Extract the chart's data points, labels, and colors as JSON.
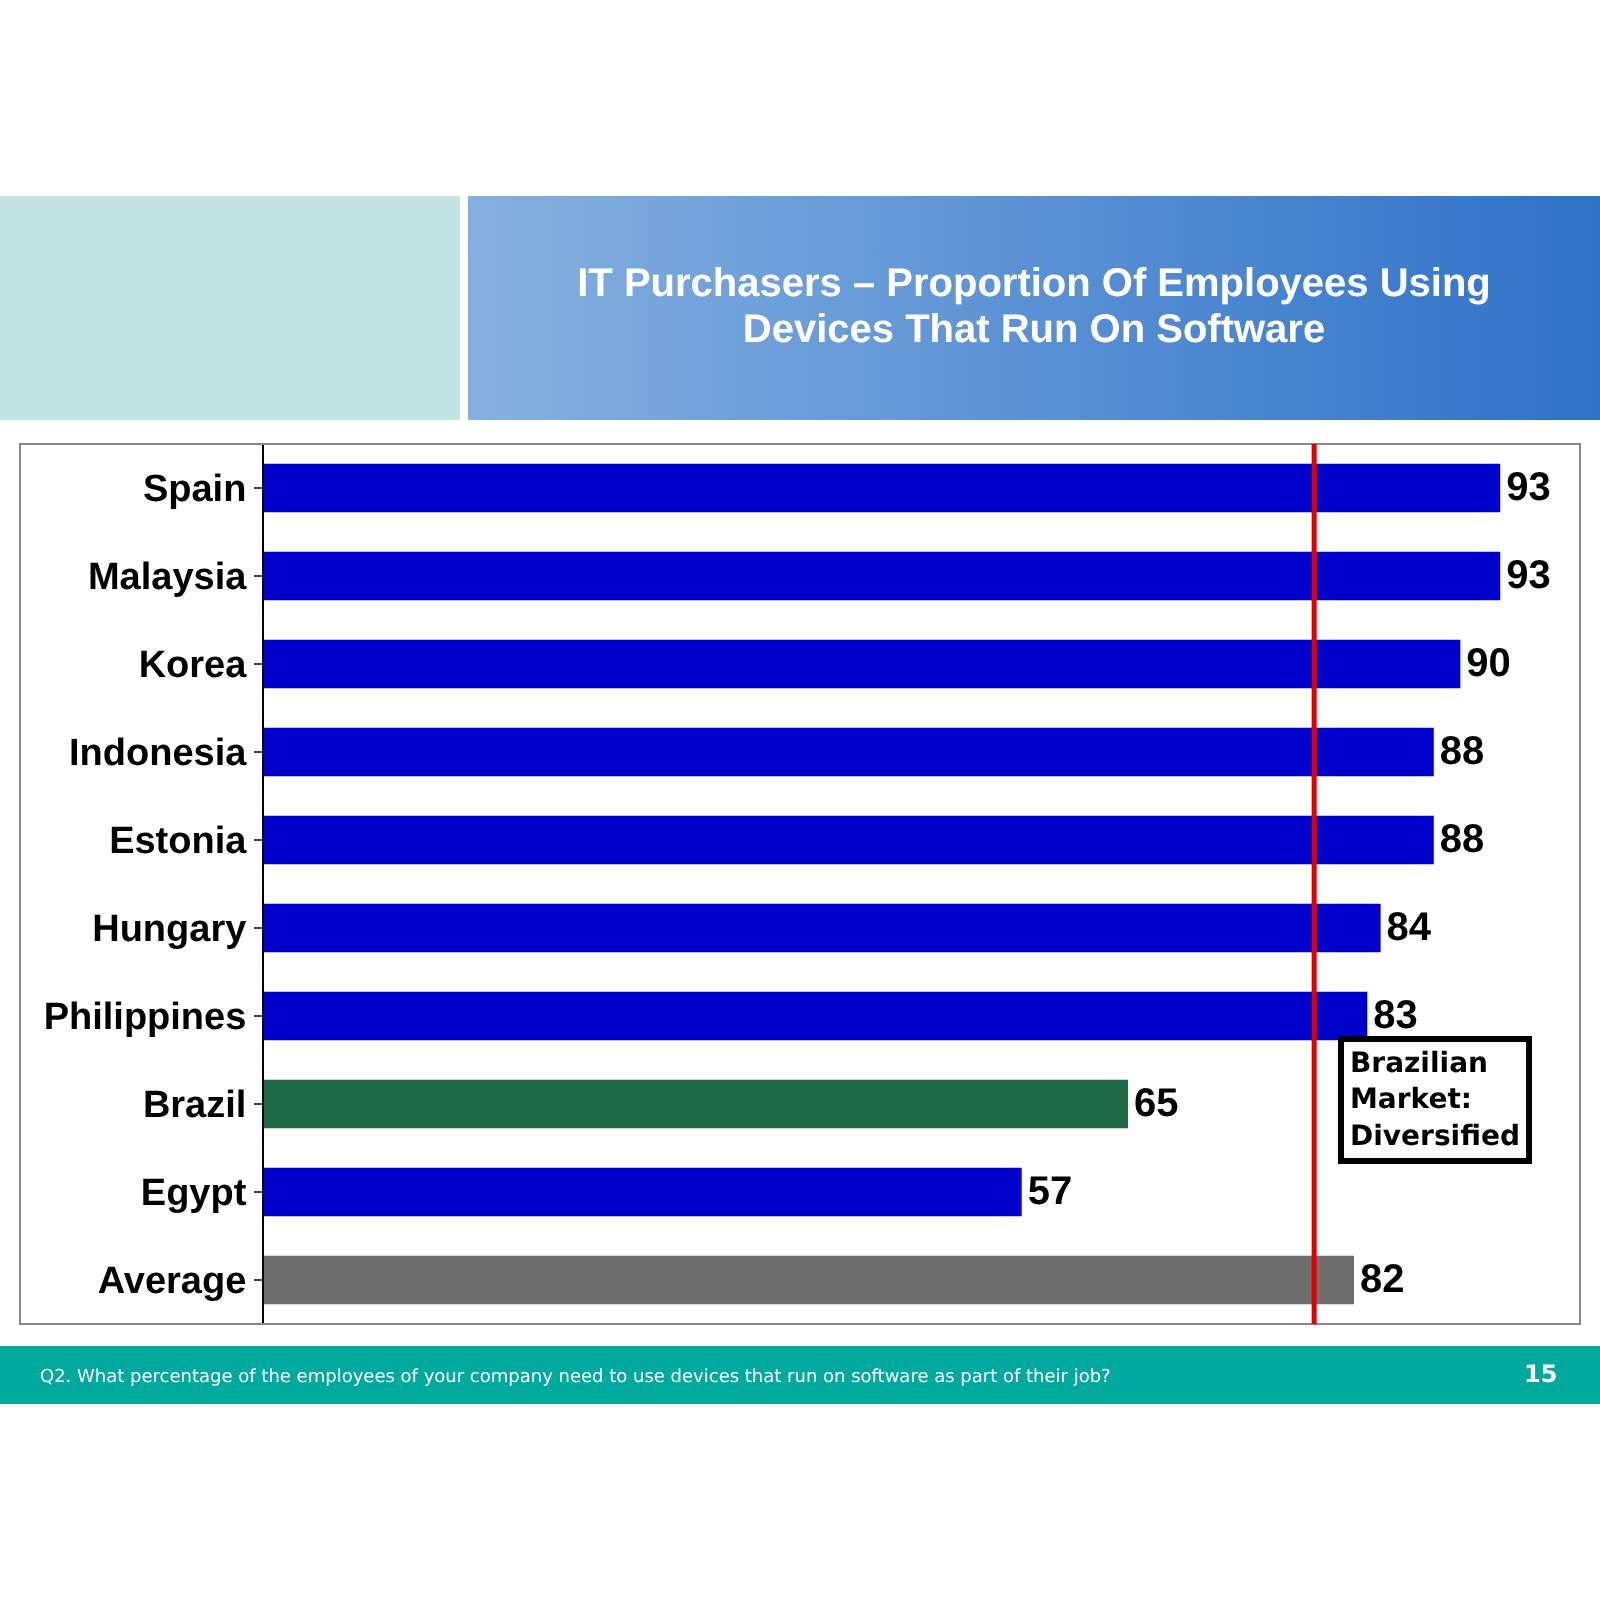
{
  "chart_data": {
    "type": "bar",
    "orientation": "horizontal",
    "title": "IT Purchasers – Proportion Of Employees Using Devices That Run On Software",
    "categories": [
      "Spain",
      "Malaysia",
      "Korea",
      "Indonesia",
      "Estonia",
      "Hungary",
      "Philippines",
      "Brazil",
      "Egypt",
      "Average"
    ],
    "values": [
      93,
      93,
      90,
      88,
      88,
      84,
      83,
      65,
      57,
      82
    ],
    "colors": [
      "#0000cc",
      "#0000cc",
      "#0000cc",
      "#0000cc",
      "#0000cc",
      "#0000cc",
      "#0000cc",
      "#1e6b45",
      "#0000cc",
      "#6e6e6e"
    ],
    "data_labels": true,
    "xlim": [
      0,
      99
    ],
    "tick_labels": "y",
    "legend": false,
    "ref_lines": [
      {
        "axis": "x",
        "value": 79,
        "color": "#e00000"
      }
    ],
    "annotations": [
      "Brazilian Market: Diversified",
      "Q2. What percentage of the employees of your company need to use devices that run on software as part of their job?",
      "15"
    ]
  }
}
